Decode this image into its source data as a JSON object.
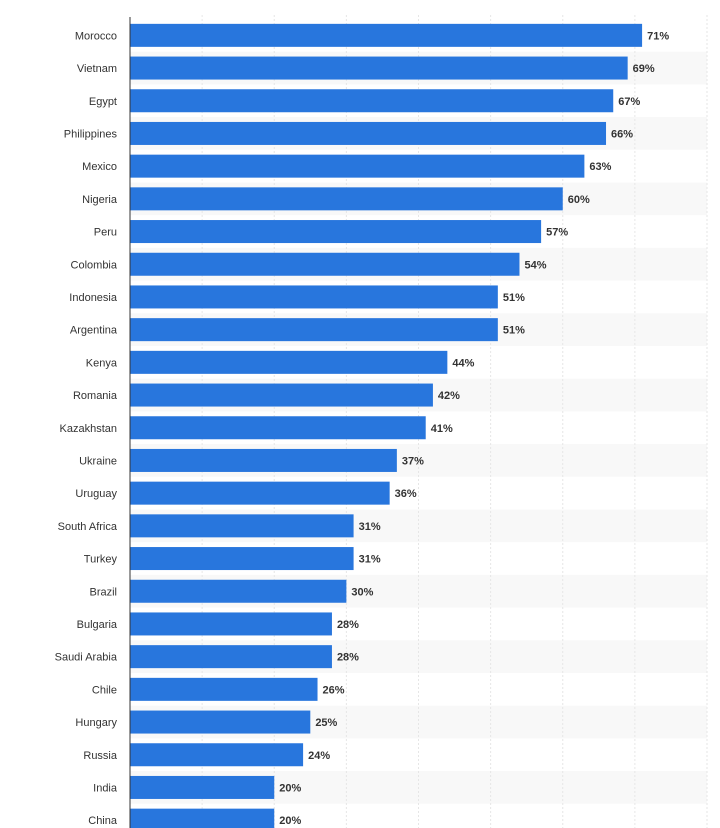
{
  "chart_data": {
    "type": "bar",
    "orientation": "horizontal",
    "categories": [
      "Morocco",
      "Vietnam",
      "Egypt",
      "Philippines",
      "Mexico",
      "Nigeria",
      "Peru",
      "Colombia",
      "Indonesia",
      "Argentina",
      "Kenya",
      "Romania",
      "Kazakhstan",
      "Ukraine",
      "Uruguay",
      "South Africa",
      "Turkey",
      "Brazil",
      "Bulgaria",
      "Saudi Arabia",
      "Chile",
      "Hungary",
      "Russia",
      "India",
      "China"
    ],
    "values": [
      71,
      69,
      67,
      66,
      63,
      60,
      57,
      54,
      51,
      51,
      44,
      42,
      41,
      37,
      36,
      31,
      31,
      30,
      28,
      28,
      26,
      25,
      24,
      20,
      20
    ],
    "value_labels": [
      "71%",
      "69%",
      "67%",
      "66%",
      "63%",
      "60%",
      "57%",
      "54%",
      "51%",
      "51%",
      "44%",
      "42%",
      "41%",
      "37%",
      "36%",
      "31%",
      "31%",
      "30%",
      "28%",
      "28%",
      "26%",
      "25%",
      "24%",
      "20%",
      "20%"
    ],
    "xlim": [
      0,
      80
    ],
    "grid": true,
    "title": "",
    "xlabel": "",
    "ylabel": "",
    "colors": {
      "bar": "#2876dd",
      "stripe": "#f8f8f8",
      "grid": "#e6e6e6",
      "axis": "#333333",
      "text": "#333333"
    }
  }
}
